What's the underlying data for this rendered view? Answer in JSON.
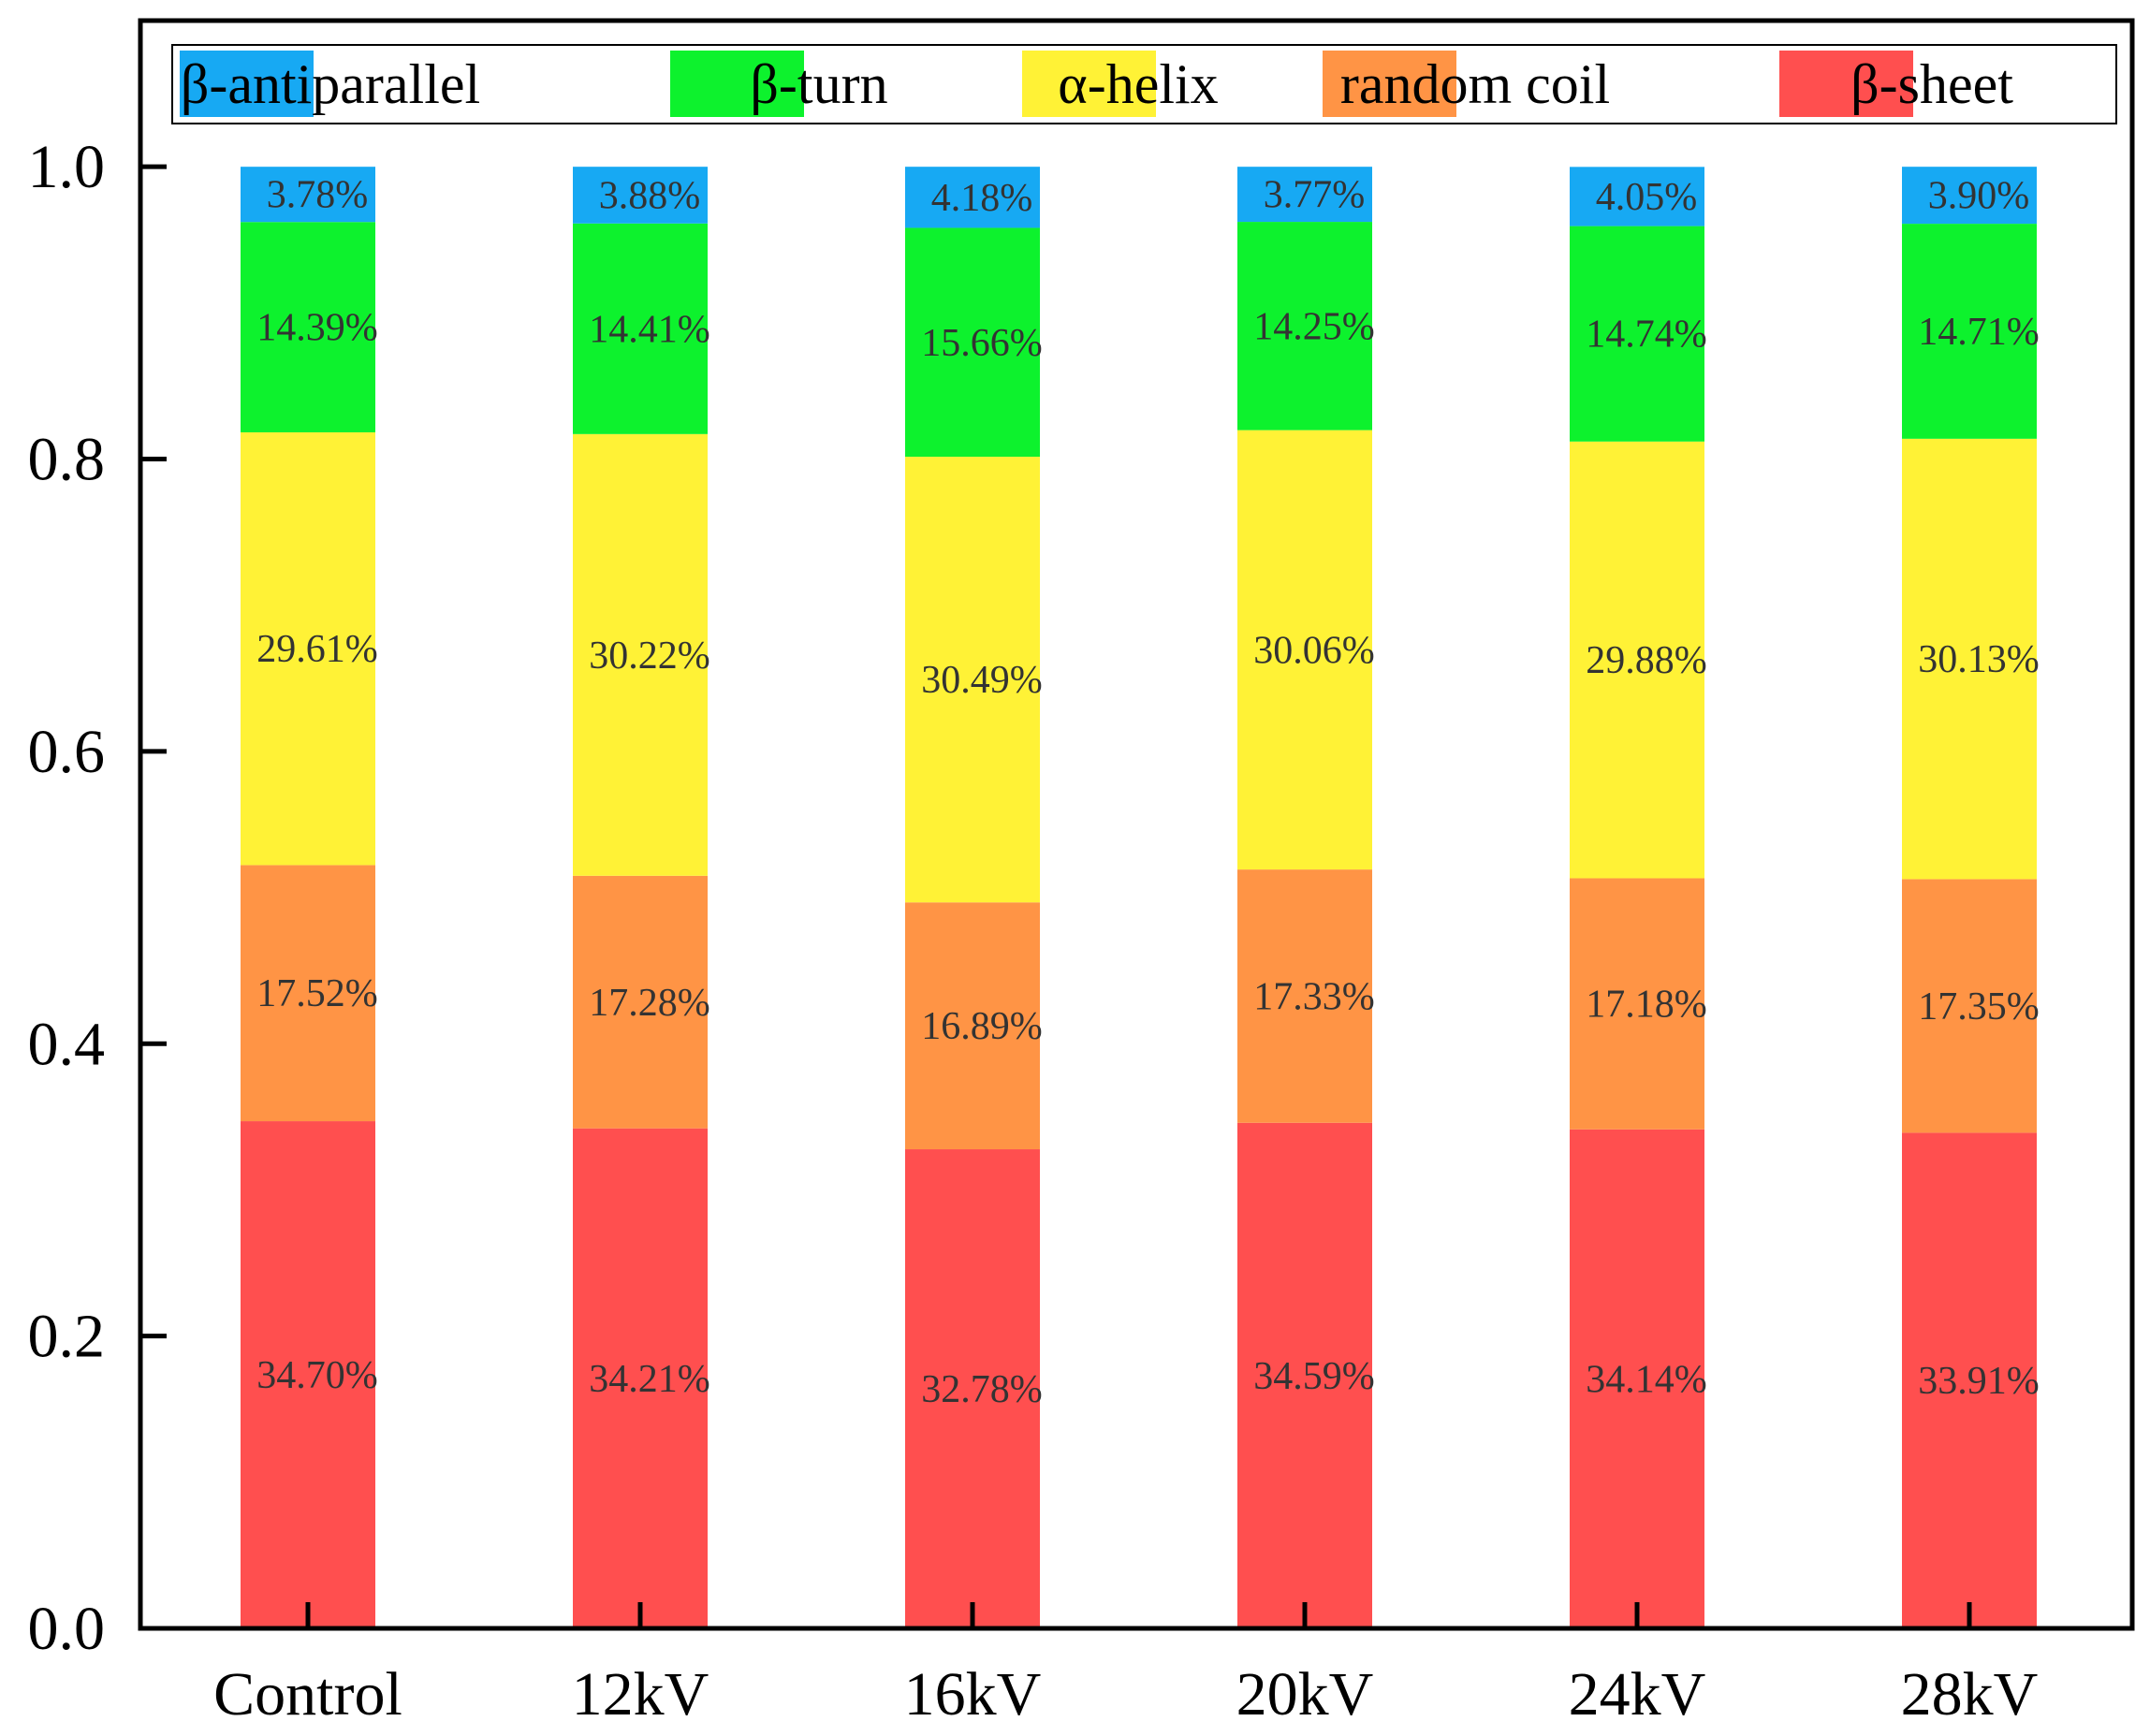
{
  "chart_data": {
    "type": "bar",
    "stacked": true,
    "title": "",
    "xlabel": "",
    "ylabel": "",
    "ylim": [
      0,
      1.1
    ],
    "yticks": [
      "0.0",
      "0.2",
      "0.4",
      "0.6",
      "0.8",
      "1.0"
    ],
    "categories": [
      "Control",
      "12kV",
      "16kV",
      "20kV",
      "24kV",
      "28kV"
    ],
    "series": [
      {
        "name": "β-sheet",
        "color": "#FF4F4F",
        "values": [
          0.347,
          0.3421,
          0.3278,
          0.3459,
          0.3414,
          0.3391
        ],
        "labels": [
          "34.70%",
          "34.21%",
          "32.78%",
          "34.59%",
          "34.14%",
          "33.91%"
        ]
      },
      {
        "name": "random coil",
        "color": "#FF9445",
        "values": [
          0.1752,
          0.1728,
          0.1689,
          0.1733,
          0.1718,
          0.1735
        ],
        "labels": [
          "17.52%",
          "17.28%",
          "16.89%",
          "17.33%",
          "17.18%",
          "17.35%"
        ]
      },
      {
        "name": "α-helix",
        "color": "#FFF236",
        "values": [
          0.2961,
          0.3022,
          0.3049,
          0.3006,
          0.2988,
          0.3013
        ],
        "labels": [
          "29.61%",
          "30.22%",
          "30.49%",
          "30.06%",
          "29.88%",
          "30.13%"
        ]
      },
      {
        "name": "β-turn",
        "color": "#0DF22D",
        "values": [
          0.1439,
          0.1441,
          0.1566,
          0.1425,
          0.1474,
          0.1471
        ],
        "labels": [
          "14.39%",
          "14.41%",
          "15.66%",
          "14.25%",
          "14.74%",
          "14.71%"
        ]
      },
      {
        "name": "β-antiparallel",
        "color": "#17A9F3",
        "values": [
          0.0378,
          0.0388,
          0.0418,
          0.0377,
          0.0405,
          0.039
        ],
        "labels": [
          "3.78%",
          "3.88%",
          "4.18%",
          "3.77%",
          "4.05%",
          "3.90%"
        ]
      }
    ],
    "legend": {
      "position": "top",
      "order": [
        "β-antiparallel",
        "β-turn",
        "α-helix",
        "random coil",
        "β-sheet"
      ]
    },
    "grid": false
  }
}
